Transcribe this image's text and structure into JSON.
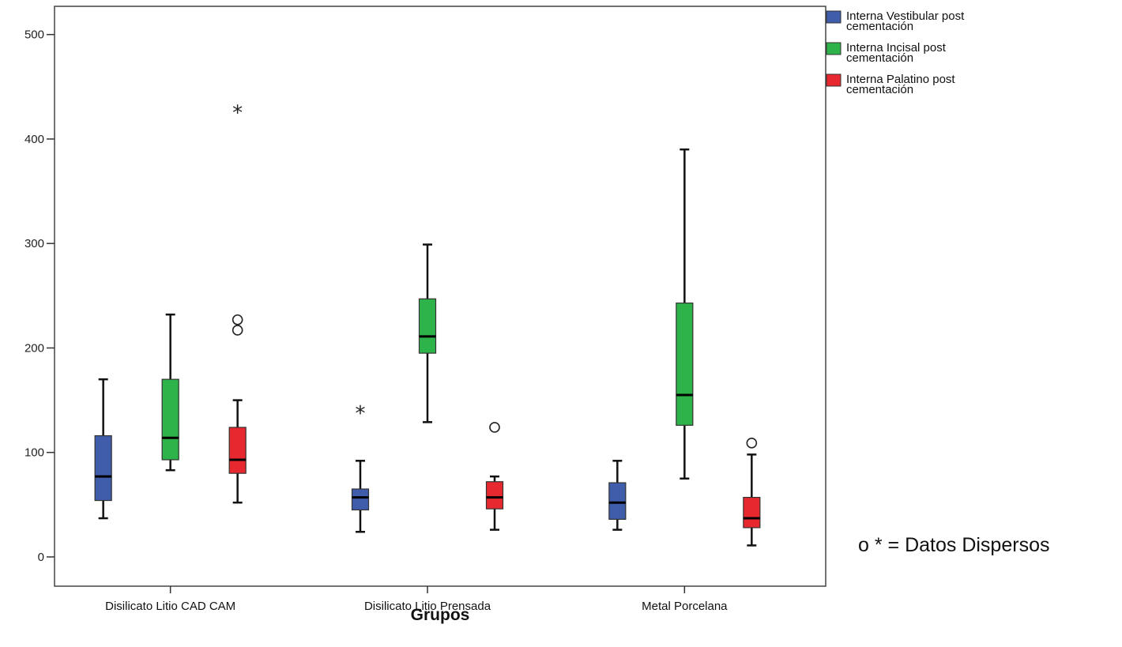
{
  "chart_data": {
    "type": "boxplot",
    "xlabel": "Grupos",
    "ylabel": "",
    "ylim": [
      -28,
      527
    ],
    "yticks": [
      0,
      100,
      200,
      300,
      400,
      500
    ],
    "categories": [
      "Disilicato Litio CAD CAM",
      "Disilicato Litio Prensada",
      "Metal Porcelana"
    ],
    "grid": false,
    "legend_position": "right",
    "outlier_note": "o * = Datos Dispersos",
    "series": [
      {
        "name": "Interna Vestibular post cementación",
        "color": "#3f5dab",
        "boxes": [
          {
            "whisker_low": 37,
            "q1": 54,
            "median": 77,
            "q3": 116,
            "whisker_high": 170,
            "outliers": [],
            "extremes": []
          },
          {
            "whisker_low": 24,
            "q1": 45,
            "median": 57,
            "q3": 65,
            "whisker_high": 92,
            "outliers": [],
            "extremes": [
              139
            ]
          },
          {
            "whisker_low": 26,
            "q1": 36,
            "median": 52,
            "q3": 71,
            "whisker_high": 92,
            "outliers": [],
            "extremes": []
          }
        ]
      },
      {
        "name": "Interna Incisal post cementación",
        "color": "#2db34a",
        "boxes": [
          {
            "whisker_low": 83,
            "q1": 93,
            "median": 114,
            "q3": 170,
            "whisker_high": 232,
            "outliers": [],
            "extremes": []
          },
          {
            "whisker_low": 129,
            "q1": 195,
            "median": 211,
            "q3": 247,
            "whisker_high": 299,
            "outliers": [],
            "extremes": []
          },
          {
            "whisker_low": 75,
            "q1": 126,
            "median": 155,
            "q3": 243,
            "whisker_high": 390,
            "outliers": [],
            "extremes": []
          }
        ]
      },
      {
        "name": "Interna Palatino post cementación",
        "color": "#e8282f",
        "boxes": [
          {
            "whisker_low": 52,
            "q1": 80,
            "median": 93,
            "q3": 124,
            "whisker_high": 150,
            "outliers": [
              217,
              227
            ],
            "extremes": [
              427
            ]
          },
          {
            "whisker_low": 26,
            "q1": 46,
            "median": 57,
            "q3": 72,
            "whisker_high": 77,
            "outliers": [
              124
            ],
            "extremes": []
          },
          {
            "whisker_low": 11,
            "q1": 28,
            "median": 37,
            "q3": 57,
            "whisker_high": 98,
            "outliers": [
              109
            ],
            "extremes": []
          }
        ]
      }
    ]
  }
}
